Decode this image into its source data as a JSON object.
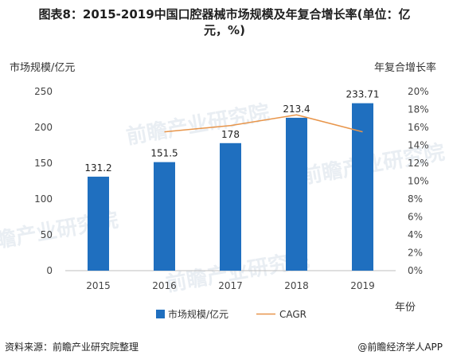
{
  "title_line1": "图表8：2015-2019中国口腔器械市场规模及年复合增长率(单位：亿",
  "title_line2": "元，%)",
  "footer": {
    "source": "资料来源：前瞻产业研究院整理",
    "brand": "@前瞻经济学人APP"
  },
  "watermark": "前瞻产业研究院",
  "colors": {
    "bar": "#1f6fbf",
    "line": "#e8954a"
  },
  "chart_data": {
    "type": "bar",
    "categories": [
      "2015",
      "2016",
      "2017",
      "2018",
      "2019"
    ],
    "series": [
      {
        "name": "市场规模/亿元",
        "type": "bar",
        "axis": "left",
        "values": [
          131.2,
          151.5,
          178,
          213.4,
          233.71
        ],
        "labels": [
          "131.2",
          "151.5",
          "178",
          "213.4",
          "233.71"
        ]
      },
      {
        "name": "CAGR",
        "type": "line",
        "axis": "right",
        "values": [
          null,
          15.5,
          16.2,
          17.4,
          15.5
        ]
      }
    ],
    "ylabel_left": "市场规模/亿元",
    "ylabel_right": "年复合增长率",
    "xlabel": "年份",
    "ylim_left": [
      0,
      250
    ],
    "yticks_left": [
      "0",
      "50",
      "100",
      "150",
      "200",
      "250"
    ],
    "ylim_right": [
      0,
      20
    ],
    "yticks_right": [
      "0%",
      "2%",
      "4%",
      "6%",
      "8%",
      "10%",
      "12%",
      "14%",
      "16%",
      "18%",
      "20%"
    ],
    "grid": false,
    "legend_position": "bottom"
  }
}
